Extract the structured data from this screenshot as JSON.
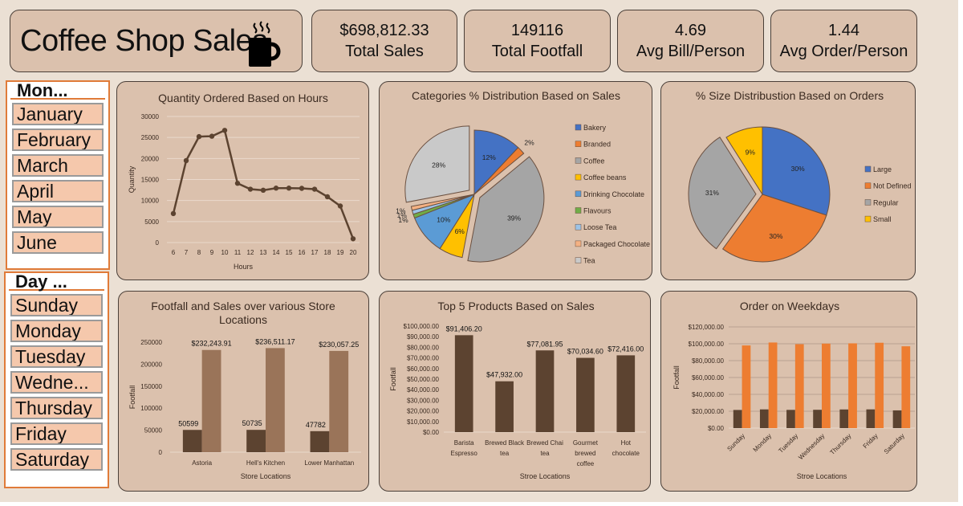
{
  "header": {
    "title": "Coffee Shop Sales",
    "icon": "coffee-mug-icon"
  },
  "kpis": [
    {
      "value": "$698,812.33",
      "label": "Total Sales"
    },
    {
      "value": "149116",
      "label": "Total Footfall"
    },
    {
      "value": "4.69",
      "label": "Avg Bill/Person"
    },
    {
      "value": "1.44",
      "label": "Avg Order/Person"
    }
  ],
  "slicers": {
    "month": {
      "header": "Mon...",
      "items": [
        "January",
        "February",
        "March",
        "April",
        "May",
        "June"
      ]
    },
    "day": {
      "header": "Day ...",
      "items": [
        "Sunday",
        "Monday",
        "Tuesday",
        "Wedne...",
        "Thursday",
        "Friday",
        "Saturday"
      ]
    }
  },
  "colors": {
    "background": "#ebe0d4",
    "card": "#dbc1ad",
    "dark_brown": "#5c4330",
    "light_brown": "#9a7459",
    "orange": "#ed7d31",
    "slicer_border": "#e07b39",
    "slicer_item": "#f5c8ac"
  },
  "chart_data": [
    {
      "id": "hours",
      "type": "line",
      "title": "Quantity Ordered Based on Hours",
      "xlabel": "Hours",
      "ylabel": "Quantity",
      "x": [
        6,
        7,
        8,
        9,
        10,
        11,
        12,
        13,
        14,
        15,
        16,
        17,
        18,
        19,
        20
      ],
      "values": [
        6900,
        19500,
        25200,
        25300,
        26700,
        14100,
        12700,
        12450,
        12950,
        12950,
        12900,
        12700,
        10900,
        8700,
        900
      ],
      "ylim": [
        0,
        30000
      ],
      "yticks": [
        0,
        5000,
        10000,
        15000,
        20000,
        25000,
        30000
      ],
      "grid": true,
      "color": "#5c4330"
    },
    {
      "id": "categories",
      "type": "pie",
      "title": "Categories % Distribution Based on Sales",
      "legend_position": "right",
      "slices": [
        {
          "label": "Bakery",
          "value": 12,
          "text": "12%",
          "color": "#4472c4",
          "explode": false
        },
        {
          "label": "Branded",
          "value": 2,
          "text": "2%",
          "color": "#ed7d31",
          "explode": false
        },
        {
          "label": "Coffee",
          "value": 39,
          "text": "39%",
          "color": "#a5a5a5",
          "explode": true
        },
        {
          "label": "Coffee beans",
          "value": 6,
          "text": "6%",
          "color": "#ffc000",
          "explode": false
        },
        {
          "label": "Drinking Chocolate",
          "value": 10,
          "text": "10%",
          "color": "#5b9bd5",
          "explode": false
        },
        {
          "label": "Flavours",
          "value": 1,
          "text": "1%",
          "color": "#70ad47",
          "explode": false
        },
        {
          "label": "Loose Tea",
          "value": 1,
          "text": "1%",
          "color": "#9dc3e6",
          "explode": false
        },
        {
          "label": "Packaged Chocolate",
          "value": 1,
          "text": "1%",
          "color": "#f4b183",
          "explode": false
        },
        {
          "label": "Tea",
          "value": 28,
          "text": "28%",
          "color": "#c9c9c9",
          "explode": true
        }
      ]
    },
    {
      "id": "sizes",
      "type": "pie",
      "title": "% Size Distribustion Based on Orders",
      "legend_position": "right",
      "slices": [
        {
          "label": "Large",
          "value": 30,
          "text": "30%",
          "color": "#4472c4",
          "explode": false
        },
        {
          "label": "Not Defined",
          "value": 30,
          "text": "30%",
          "color": "#ed7d31",
          "explode": false
        },
        {
          "label": "Regular",
          "value": 31,
          "text": "31%",
          "color": "#a5a5a5",
          "explode": true
        },
        {
          "label": "Small",
          "value": 9,
          "text": "9%",
          "color": "#ffc000",
          "explode": false
        }
      ]
    },
    {
      "id": "stores",
      "type": "bar",
      "title": "Footfall and Sales over various Store Locations",
      "xlabel": "Store Locations",
      "ylabel": "Footfall",
      "categories": [
        "Astoria",
        "Hell's Kitchen",
        "Lower Manhattan"
      ],
      "series": [
        {
          "name": "Footfall",
          "values": [
            50599,
            50735,
            47782
          ],
          "labels": [
            "50599",
            "50735",
            "47782"
          ],
          "color": "#5c4330"
        },
        {
          "name": "Sales",
          "values": [
            232243.91,
            236511.17,
            230057.25
          ],
          "labels": [
            "$232,243.91",
            "$236,511.17",
            "$230,057.25"
          ],
          "color": "#9a7459"
        }
      ],
      "ylim": [
        0,
        250000
      ],
      "yticks": [
        0,
        50000,
        100000,
        150000,
        200000,
        250000
      ],
      "grid": false
    },
    {
      "id": "products",
      "type": "bar",
      "title": "Top 5 Products Based on Sales",
      "xlabel": "Stroe Locations",
      "ylabel": "Footfall",
      "categories": [
        "Barista Espresso",
        "Brewed Black tea",
        "Brewed Chai tea",
        "Gourmet brewed coffee",
        "Hot chocolate"
      ],
      "category_lines": [
        [
          "Barista",
          "Espresso"
        ],
        [
          "Brewed Black",
          "tea"
        ],
        [
          "Brewed Chai",
          "tea"
        ],
        [
          "Gourmet",
          "brewed",
          "coffee"
        ],
        [
          "Hot",
          "chocolate"
        ]
      ],
      "series": [
        {
          "name": "Sales",
          "values": [
            91406.2,
            47932.0,
            77081.95,
            70034.6,
            72416.0
          ],
          "labels": [
            "$91,406.20",
            "$47,932.00",
            "$77,081.95",
            "$70,034.60",
            "$72,416.00"
          ],
          "color": "#5c4330"
        }
      ],
      "ylim": [
        0,
        100000
      ],
      "yticks": [
        0,
        10000,
        20000,
        30000,
        40000,
        50000,
        60000,
        70000,
        80000,
        90000,
        100000
      ],
      "ytick_labels": [
        "$0.00",
        "$10,000.00",
        "$20,000.00",
        "$30,000.00",
        "$40,000.00",
        "$50,000.00",
        "$60,000.00",
        "$70,000.00",
        "$80,000.00",
        "$90,000.00",
        "$100,000.00"
      ],
      "grid": false
    },
    {
      "id": "weekdays",
      "type": "bar",
      "title": "Order on Weekdays",
      "xlabel": "Stroe Locations",
      "ylabel": "Footfall",
      "categories": [
        "Sunday",
        "Monday",
        "Tuesday",
        "Wednesday",
        "Thursday",
        "Friday",
        "Saturday"
      ],
      "series": [
        {
          "name": "Footfall",
          "values": [
            21500,
            22200,
            21600,
            21700,
            22100,
            22200,
            21000
          ],
          "color": "#5c4330"
        },
        {
          "name": "Sales",
          "values": [
            98000,
            101500,
            99500,
            100200,
            100500,
            101200,
            97000
          ],
          "color": "#ed7d31"
        }
      ],
      "ylim": [
        0,
        120000
      ],
      "yticks": [
        0,
        20000,
        40000,
        60000,
        80000,
        100000,
        120000
      ],
      "ytick_labels": [
        "$0.00",
        "$20,000.00",
        "$40,000.00",
        "$60,000.00",
        "$80,000.00",
        "$100,000.00",
        "$120,000.00"
      ],
      "grid": true
    }
  ]
}
